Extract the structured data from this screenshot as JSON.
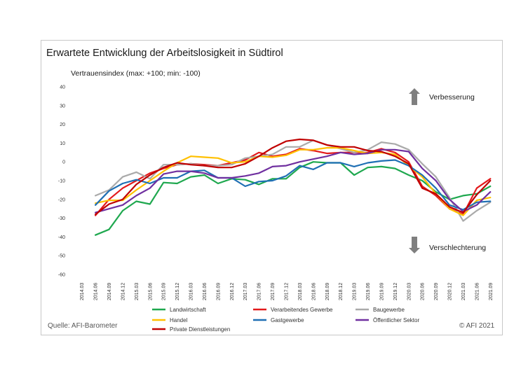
{
  "chart_data": {
    "type": "line",
    "title": "Erwartete Entwicklung der Arbeitslosigkeit in Südtirol",
    "ylabel": "Vertrauensindex (max: +100; min: -100)",
    "xlabel": "",
    "ylim": [
      -60,
      40
    ],
    "yticks": [
      40,
      30,
      20,
      10,
      0,
      -10,
      -20,
      -30,
      -40,
      -50,
      -60
    ],
    "grid": false,
    "legend_position": "bottom",
    "categories": [
      "2014.03",
      "2014.06",
      "2014.09",
      "2014.12",
      "2015.03",
      "2015.06",
      "2015.09",
      "2015.12",
      "2016.03",
      "2016.06",
      "2016.09",
      "2016.12",
      "2017.03",
      "2017.06",
      "2017.09",
      "2017.12",
      "2018.03",
      "2018.06",
      "2018.09",
      "2018.12",
      "2019.03",
      "2019.06",
      "2019.09",
      "2019.12",
      "2020.03",
      "2020.06",
      "2020.09",
      "2020.12",
      "2021.03",
      "2021.06",
      "2021.09"
    ],
    "series": [
      {
        "name": "Landwirtschaft",
        "color": "#1fa84f",
        "values": [
          null,
          -39,
          -36,
          -26,
          -21,
          -22.5,
          -11,
          -11.5,
          -8,
          -7,
          -11.5,
          -9,
          -9.5,
          -12,
          -9,
          -9,
          -3,
          0,
          -0.5,
          -0.5,
          -7,
          -3,
          -2.5,
          -3.5,
          -7,
          -10,
          -16,
          -20,
          -18,
          -17,
          -13
        ]
      },
      {
        "name": "Verarbeitendes Gewerbe",
        "color": "#e31a1c",
        "values": [
          null,
          -28.5,
          -20,
          -14,
          -10,
          -6,
          -3.5,
          -1.5,
          -1,
          -1.5,
          -2,
          -0.5,
          1,
          5,
          3,
          4,
          7,
          6,
          4.5,
          5,
          5,
          5,
          7,
          5,
          0,
          -13,
          -18,
          -25,
          -28,
          -14,
          -9
        ]
      },
      {
        "name": "Baugewerbe",
        "color": "#aaaaaa",
        "values": [
          null,
          -18,
          -15,
          -8,
          -5.5,
          -9,
          -1.5,
          -1.5,
          -1,
          -2,
          -2,
          -1.5,
          2,
          3,
          4,
          8,
          8,
          11.5,
          9,
          7,
          5,
          6.5,
          10.5,
          9.5,
          6.5,
          -1,
          -8,
          -19,
          -31.5,
          -26,
          -21.5
        ]
      },
      {
        "name": "Handel",
        "color": "#ffc000",
        "values": [
          null,
          -22,
          -20.5,
          -20.5,
          -15,
          -10,
          -5,
          -0.5,
          3,
          2.5,
          2,
          -0.5,
          0,
          3,
          2.5,
          3.5,
          6.5,
          6.5,
          7.5,
          7.5,
          6,
          4.5,
          5,
          4,
          -2,
          -8,
          -17,
          -25,
          -28.5,
          -20.5,
          -19
        ]
      },
      {
        "name": "Gastgewerbe",
        "color": "#1f6fb4",
        "values": [
          null,
          -23,
          -15.5,
          -11.5,
          -9.5,
          -11.5,
          -8.5,
          -8.5,
          -5,
          -4.5,
          -8.5,
          -8.5,
          -13,
          -10.5,
          -10,
          -7.5,
          -2,
          -4,
          -0.5,
          -0.5,
          -2.5,
          -0.5,
          0.5,
          1,
          -2,
          -7,
          -14,
          -23,
          -25.5,
          -21.5,
          -21
        ]
      },
      {
        "name": "Öffentlicher Sektor",
        "color": "#7030a0",
        "values": [
          null,
          -27,
          -25,
          -23,
          -18,
          -14,
          -6.5,
          -5,
          -5,
          -6,
          -8.5,
          -8.5,
          -7.5,
          -6,
          -2.5,
          -2,
          0,
          1.5,
          3,
          5,
          4,
          4.5,
          6.5,
          6.5,
          5.5,
          -3.5,
          -10,
          -20,
          -26.5,
          -23,
          -16
        ]
      },
      {
        "name": "Private Dienstleistungen",
        "color": "#c00000",
        "values": [
          null,
          -28,
          -22.5,
          -20,
          -12,
          -7,
          -3,
          -0.5,
          -1.5,
          -2,
          -3,
          -3,
          -1,
          3,
          7.5,
          11,
          12,
          11.5,
          9,
          8,
          8,
          6,
          5.5,
          3,
          -1,
          -14,
          -17,
          -24,
          -27,
          -17.5,
          -10
        ]
      }
    ],
    "annotations": [
      {
        "text": "Verbesserung",
        "arrow": "up"
      },
      {
        "text": "Verschlechterung",
        "arrow": "down"
      }
    ],
    "source": "Quelle: AFI-Barometer",
    "copyright": "© AFI 2021"
  }
}
